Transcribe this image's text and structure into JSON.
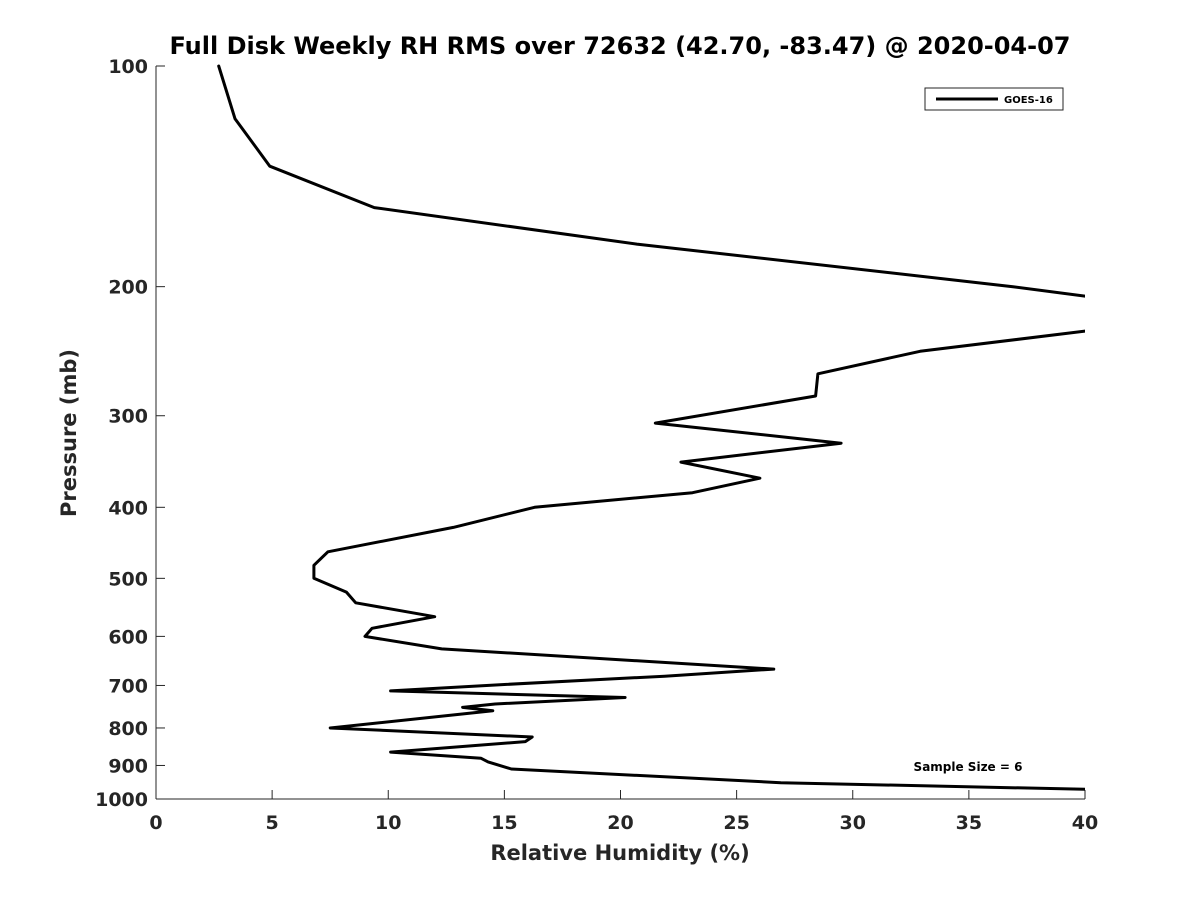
{
  "chart_data": {
    "type": "line",
    "title": "Full Disk Weekly RH RMS over 72632 (42.70, -83.47) @ 2020-04-07",
    "xlabel": "Relative Humidity (%)",
    "ylabel": "Pressure (mb)",
    "xlim": [
      0,
      40
    ],
    "ylim": [
      100,
      1000
    ],
    "yscale": "log",
    "y_reversed": true,
    "grid": false,
    "legend_position": "top-right",
    "xticks": [
      0,
      5,
      10,
      15,
      20,
      25,
      30,
      35,
      40
    ],
    "yticks": [
      100,
      200,
      300,
      400,
      500,
      600,
      700,
      800,
      900,
      1000
    ],
    "annotation": "Sample Size = 6",
    "series": [
      {
        "name": "GOES-16",
        "color": "#000000",
        "segments": [
          {
            "x": [
              2.7,
              3.4,
              4.9,
              9.4,
              20.7,
              36.9,
              40.0
            ],
            "y": [
              100,
              118,
              137,
              156,
              175,
              200,
              206
            ]
          },
          {
            "x": [
              40.0,
              32.9,
              28.5,
              28.4,
              21.5,
              29.5,
              22.6,
              26.0,
              23.1,
              16.3,
              12.8,
              7.4,
              6.8,
              6.8,
              8.2,
              8.6,
              12.0,
              9.3,
              9.0,
              12.3,
              26.6,
              21.9,
              15.0,
              10.1,
              20.2,
              14.6,
              13.2,
              14.5,
              7.5,
              16.2,
              15.9,
              10.1,
              14.0,
              14.3,
              15.3,
              26.9,
              40.0
            ],
            "y": [
              230,
              245,
              263,
              282,
              307,
              327,
              347,
              365,
              382,
              400,
              426,
              460,
              480,
              500,
              522,
              540,
              564,
              585,
              600,
              624,
              665,
              680,
              698,
              712,
              727,
              742,
              750,
              758,
              800,
              823,
              835,
              863,
              880,
              890,
              910,
              950,
              970
            ]
          }
        ]
      }
    ]
  }
}
